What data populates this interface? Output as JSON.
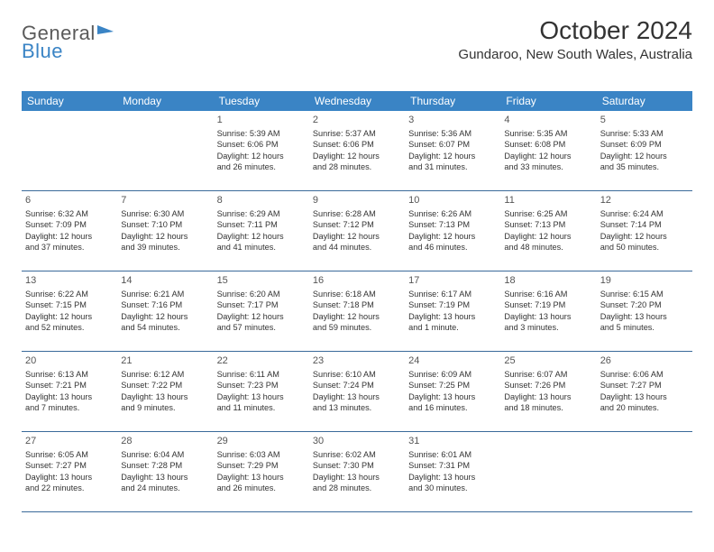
{
  "logo": {
    "part1": "General",
    "part2": "Blue"
  },
  "title": "October 2024",
  "subtitle": "Gundaroo, New South Wales, Australia",
  "colors": {
    "header_bg": "#3a84c5",
    "header_text": "#ffffff",
    "border": "#3a6a9a",
    "text": "#333333",
    "logo_gray": "#5a5a5a",
    "logo_blue": "#3a84c5",
    "background": "#ffffff"
  },
  "typography": {
    "title_fontsize": 28,
    "subtitle_fontsize": 15,
    "dow_fontsize": 12,
    "daynum_fontsize": 11,
    "body_fontsize": 9.2
  },
  "dow": [
    "Sunday",
    "Monday",
    "Tuesday",
    "Wednesday",
    "Thursday",
    "Friday",
    "Saturday"
  ],
  "weeks": [
    [
      null,
      null,
      {
        "n": "1",
        "sr": "Sunrise: 5:39 AM",
        "ss": "Sunset: 6:06 PM",
        "d1": "Daylight: 12 hours",
        "d2": "and 26 minutes."
      },
      {
        "n": "2",
        "sr": "Sunrise: 5:37 AM",
        "ss": "Sunset: 6:06 PM",
        "d1": "Daylight: 12 hours",
        "d2": "and 28 minutes."
      },
      {
        "n": "3",
        "sr": "Sunrise: 5:36 AM",
        "ss": "Sunset: 6:07 PM",
        "d1": "Daylight: 12 hours",
        "d2": "and 31 minutes."
      },
      {
        "n": "4",
        "sr": "Sunrise: 5:35 AM",
        "ss": "Sunset: 6:08 PM",
        "d1": "Daylight: 12 hours",
        "d2": "and 33 minutes."
      },
      {
        "n": "5",
        "sr": "Sunrise: 5:33 AM",
        "ss": "Sunset: 6:09 PM",
        "d1": "Daylight: 12 hours",
        "d2": "and 35 minutes."
      }
    ],
    [
      {
        "n": "6",
        "sr": "Sunrise: 6:32 AM",
        "ss": "Sunset: 7:09 PM",
        "d1": "Daylight: 12 hours",
        "d2": "and 37 minutes."
      },
      {
        "n": "7",
        "sr": "Sunrise: 6:30 AM",
        "ss": "Sunset: 7:10 PM",
        "d1": "Daylight: 12 hours",
        "d2": "and 39 minutes."
      },
      {
        "n": "8",
        "sr": "Sunrise: 6:29 AM",
        "ss": "Sunset: 7:11 PM",
        "d1": "Daylight: 12 hours",
        "d2": "and 41 minutes."
      },
      {
        "n": "9",
        "sr": "Sunrise: 6:28 AM",
        "ss": "Sunset: 7:12 PM",
        "d1": "Daylight: 12 hours",
        "d2": "and 44 minutes."
      },
      {
        "n": "10",
        "sr": "Sunrise: 6:26 AM",
        "ss": "Sunset: 7:13 PM",
        "d1": "Daylight: 12 hours",
        "d2": "and 46 minutes."
      },
      {
        "n": "11",
        "sr": "Sunrise: 6:25 AM",
        "ss": "Sunset: 7:13 PM",
        "d1": "Daylight: 12 hours",
        "d2": "and 48 minutes."
      },
      {
        "n": "12",
        "sr": "Sunrise: 6:24 AM",
        "ss": "Sunset: 7:14 PM",
        "d1": "Daylight: 12 hours",
        "d2": "and 50 minutes."
      }
    ],
    [
      {
        "n": "13",
        "sr": "Sunrise: 6:22 AM",
        "ss": "Sunset: 7:15 PM",
        "d1": "Daylight: 12 hours",
        "d2": "and 52 minutes."
      },
      {
        "n": "14",
        "sr": "Sunrise: 6:21 AM",
        "ss": "Sunset: 7:16 PM",
        "d1": "Daylight: 12 hours",
        "d2": "and 54 minutes."
      },
      {
        "n": "15",
        "sr": "Sunrise: 6:20 AM",
        "ss": "Sunset: 7:17 PM",
        "d1": "Daylight: 12 hours",
        "d2": "and 57 minutes."
      },
      {
        "n": "16",
        "sr": "Sunrise: 6:18 AM",
        "ss": "Sunset: 7:18 PM",
        "d1": "Daylight: 12 hours",
        "d2": "and 59 minutes."
      },
      {
        "n": "17",
        "sr": "Sunrise: 6:17 AM",
        "ss": "Sunset: 7:19 PM",
        "d1": "Daylight: 13 hours",
        "d2": "and 1 minute."
      },
      {
        "n": "18",
        "sr": "Sunrise: 6:16 AM",
        "ss": "Sunset: 7:19 PM",
        "d1": "Daylight: 13 hours",
        "d2": "and 3 minutes."
      },
      {
        "n": "19",
        "sr": "Sunrise: 6:15 AM",
        "ss": "Sunset: 7:20 PM",
        "d1": "Daylight: 13 hours",
        "d2": "and 5 minutes."
      }
    ],
    [
      {
        "n": "20",
        "sr": "Sunrise: 6:13 AM",
        "ss": "Sunset: 7:21 PM",
        "d1": "Daylight: 13 hours",
        "d2": "and 7 minutes."
      },
      {
        "n": "21",
        "sr": "Sunrise: 6:12 AM",
        "ss": "Sunset: 7:22 PM",
        "d1": "Daylight: 13 hours",
        "d2": "and 9 minutes."
      },
      {
        "n": "22",
        "sr": "Sunrise: 6:11 AM",
        "ss": "Sunset: 7:23 PM",
        "d1": "Daylight: 13 hours",
        "d2": "and 11 minutes."
      },
      {
        "n": "23",
        "sr": "Sunrise: 6:10 AM",
        "ss": "Sunset: 7:24 PM",
        "d1": "Daylight: 13 hours",
        "d2": "and 13 minutes."
      },
      {
        "n": "24",
        "sr": "Sunrise: 6:09 AM",
        "ss": "Sunset: 7:25 PM",
        "d1": "Daylight: 13 hours",
        "d2": "and 16 minutes."
      },
      {
        "n": "25",
        "sr": "Sunrise: 6:07 AM",
        "ss": "Sunset: 7:26 PM",
        "d1": "Daylight: 13 hours",
        "d2": "and 18 minutes."
      },
      {
        "n": "26",
        "sr": "Sunrise: 6:06 AM",
        "ss": "Sunset: 7:27 PM",
        "d1": "Daylight: 13 hours",
        "d2": "and 20 minutes."
      }
    ],
    [
      {
        "n": "27",
        "sr": "Sunrise: 6:05 AM",
        "ss": "Sunset: 7:27 PM",
        "d1": "Daylight: 13 hours",
        "d2": "and 22 minutes."
      },
      {
        "n": "28",
        "sr": "Sunrise: 6:04 AM",
        "ss": "Sunset: 7:28 PM",
        "d1": "Daylight: 13 hours",
        "d2": "and 24 minutes."
      },
      {
        "n": "29",
        "sr": "Sunrise: 6:03 AM",
        "ss": "Sunset: 7:29 PM",
        "d1": "Daylight: 13 hours",
        "d2": "and 26 minutes."
      },
      {
        "n": "30",
        "sr": "Sunrise: 6:02 AM",
        "ss": "Sunset: 7:30 PM",
        "d1": "Daylight: 13 hours",
        "d2": "and 28 minutes."
      },
      {
        "n": "31",
        "sr": "Sunrise: 6:01 AM",
        "ss": "Sunset: 7:31 PM",
        "d1": "Daylight: 13 hours",
        "d2": "and 30 minutes."
      },
      null,
      null
    ]
  ]
}
